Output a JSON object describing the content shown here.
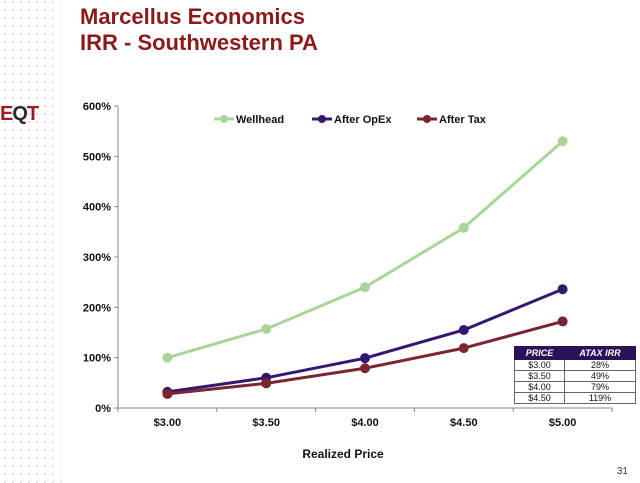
{
  "title_line1": "Marcellus Economics",
  "title_line2": "IRR - Southwestern PA",
  "logo": {
    "left": "E",
    "mid": "Q",
    "right": "T"
  },
  "page_number": "31",
  "colors": {
    "title": "#8b1a1a",
    "wellhead": "#a8d59a",
    "after_opex": "#351770",
    "after_tax": "#7b2531",
    "table_header": "#2b1258"
  },
  "chart_data": {
    "type": "line",
    "title": "",
    "xlabel": "Realized Price",
    "ylabel": "",
    "categories": [
      "$3.00",
      "$3.50",
      "$4.00",
      "$4.50",
      "$5.00"
    ],
    "ylim": [
      0,
      600
    ],
    "yticks": [
      0,
      100,
      200,
      300,
      400,
      500,
      600
    ],
    "ytick_labels": [
      "0%",
      "100%",
      "200%",
      "300%",
      "400%",
      "500%",
      "600%"
    ],
    "grid": false,
    "legend_position": "top",
    "series": [
      {
        "name": "Wellhead",
        "color": "#a8d59a",
        "values": [
          100,
          157,
          240,
          358,
          530
        ]
      },
      {
        "name": "After OpEx",
        "color": "#351770",
        "values": [
          32,
          60,
          99,
          155,
          236
        ]
      },
      {
        "name": "After Tax",
        "color": "#7b2531",
        "values": [
          28,
          49,
          79,
          119,
          172
        ]
      }
    ]
  },
  "irr_table": {
    "headers": [
      "PRICE",
      "ATAX IRR"
    ],
    "rows": [
      {
        "price": "$3.00",
        "irr": "28%"
      },
      {
        "price": "$3.50",
        "irr": "49%"
      },
      {
        "price": "$4.00",
        "irr": "79%"
      },
      {
        "price": "$4.50",
        "irr": "119%"
      }
    ]
  }
}
